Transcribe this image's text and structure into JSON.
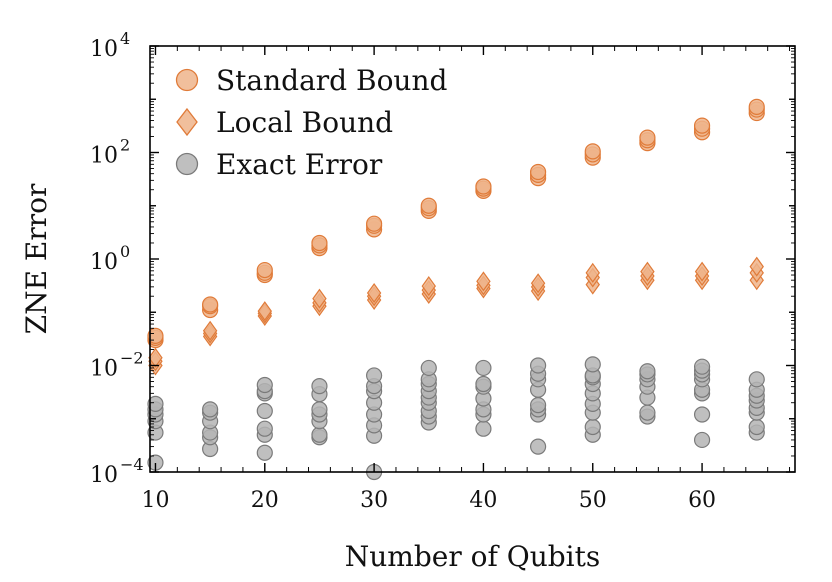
{
  "chart_data": {
    "type": "scatter",
    "xlabel": "Number of Qubits",
    "ylabel": "ZNE Error",
    "xlim": [
      9.5,
      68.5
    ],
    "ylim_log10": [
      -4,
      4
    ],
    "y_scale": "log",
    "grid": false,
    "legend_placement": "top-left",
    "x_ticks": [
      {
        "value": 10,
        "label": "10"
      },
      {
        "value": 20,
        "label": "20"
      },
      {
        "value": 30,
        "label": "30"
      },
      {
        "value": 40,
        "label": "40"
      },
      {
        "value": 50,
        "label": "50"
      },
      {
        "value": 60,
        "label": "60"
      }
    ],
    "y_ticks": [
      {
        "exp": -4,
        "base": "10",
        "sup": "−4"
      },
      {
        "exp": -2,
        "base": "10",
        "sup": "−2"
      },
      {
        "exp": 0,
        "base": "10",
        "sup": "0"
      },
      {
        "exp": 2,
        "base": "10",
        "sup": "2"
      },
      {
        "exp": 4,
        "base": "10",
        "sup": "4"
      }
    ],
    "series": [
      {
        "name": "Standard Bound",
        "marker": "circle",
        "color": "#e07b39",
        "fill": "#efb48b",
        "points": [
          [
            10,
            0.03
          ],
          [
            10,
            0.033
          ],
          [
            10,
            0.036
          ],
          [
            15,
            0.11
          ],
          [
            15,
            0.13
          ],
          [
            15,
            0.14
          ],
          [
            20,
            0.5
          ],
          [
            20,
            0.55
          ],
          [
            20,
            0.62
          ],
          [
            25,
            1.6
          ],
          [
            25,
            1.8
          ],
          [
            25,
            2.0
          ],
          [
            30,
            3.6
          ],
          [
            30,
            4.2
          ],
          [
            30,
            4.6
          ],
          [
            35,
            8.0
          ],
          [
            35,
            9.0
          ],
          [
            35,
            10.0
          ],
          [
            40,
            19.0
          ],
          [
            40,
            21.0
          ],
          [
            40,
            23.0
          ],
          [
            45,
            33.0
          ],
          [
            45,
            38.0
          ],
          [
            45,
            43.0
          ],
          [
            50,
            80.0
          ],
          [
            50,
            92.0
          ],
          [
            50,
            105.0
          ],
          [
            55,
            150.0
          ],
          [
            55,
            170.0
          ],
          [
            55,
            190.0
          ],
          [
            60,
            240.0
          ],
          [
            60,
            280.0
          ],
          [
            60,
            320.0
          ],
          [
            65,
            550.0
          ],
          [
            65,
            640.0
          ],
          [
            65,
            720.0
          ]
        ]
      },
      {
        "name": "Local Bound",
        "marker": "diamond",
        "color": "#e07b39",
        "fill": "#efb48b",
        "points": [
          [
            10,
            0.01
          ],
          [
            10,
            0.012
          ],
          [
            10,
            0.014
          ],
          [
            15,
            0.035
          ],
          [
            15,
            0.04
          ],
          [
            15,
            0.045
          ],
          [
            20,
            0.085
          ],
          [
            20,
            0.095
          ],
          [
            20,
            0.105
          ],
          [
            25,
            0.13
          ],
          [
            25,
            0.15
          ],
          [
            25,
            0.18
          ],
          [
            30,
            0.17
          ],
          [
            30,
            0.2
          ],
          [
            30,
            0.23
          ],
          [
            35,
            0.22
          ],
          [
            35,
            0.26
          ],
          [
            35,
            0.31
          ],
          [
            40,
            0.28
          ],
          [
            40,
            0.32
          ],
          [
            40,
            0.38
          ],
          [
            45,
            0.25
          ],
          [
            45,
            0.3
          ],
          [
            45,
            0.35
          ],
          [
            50,
            0.33
          ],
          [
            50,
            0.45
          ],
          [
            50,
            0.55
          ],
          [
            55,
            0.4
          ],
          [
            55,
            0.48
          ],
          [
            55,
            0.58
          ],
          [
            60,
            0.4
          ],
          [
            60,
            0.48
          ],
          [
            60,
            0.58
          ],
          [
            65,
            0.4
          ],
          [
            65,
            0.55
          ],
          [
            65,
            0.72
          ]
        ]
      },
      {
        "name": "Exact Error",
        "marker": "circle",
        "color": "#7a7a7a",
        "fill": "#b4b4b4",
        "points": [
          [
            10,
            0.00015
          ],
          [
            10,
            0.00055
          ],
          [
            10,
            0.0009
          ],
          [
            10,
            0.0012
          ],
          [
            10,
            0.0015
          ],
          [
            10,
            0.0019
          ],
          [
            15,
            0.00027
          ],
          [
            15,
            0.00045
          ],
          [
            15,
            0.00055
          ],
          [
            15,
            0.0009
          ],
          [
            15,
            0.0013
          ],
          [
            15,
            0.0015
          ],
          [
            20,
            0.00023
          ],
          [
            20,
            0.0005
          ],
          [
            20,
            0.00065
          ],
          [
            20,
            0.0014
          ],
          [
            20,
            0.003
          ],
          [
            20,
            0.0033
          ],
          [
            20,
            0.0043
          ],
          [
            25,
            0.00045
          ],
          [
            25,
            0.0005
          ],
          [
            25,
            0.0009
          ],
          [
            25,
            0.0012
          ],
          [
            25,
            0.0015
          ],
          [
            25,
            0.0029
          ],
          [
            25,
            0.0041
          ],
          [
            30,
            0.0001
          ],
          [
            30,
            0.00048
          ],
          [
            30,
            0.00075
          ],
          [
            30,
            0.0012
          ],
          [
            30,
            0.002
          ],
          [
            30,
            0.0033
          ],
          [
            30,
            0.0041
          ],
          [
            30,
            0.0065
          ],
          [
            35,
            0.00085
          ],
          [
            35,
            0.0011
          ],
          [
            35,
            0.0014
          ],
          [
            35,
            0.002
          ],
          [
            35,
            0.0025
          ],
          [
            35,
            0.0033
          ],
          [
            35,
            0.0045
          ],
          [
            35,
            0.0055
          ],
          [
            35,
            0.009
          ],
          [
            40,
            0.00065
          ],
          [
            40,
            0.0012
          ],
          [
            40,
            0.0015
          ],
          [
            40,
            0.0024
          ],
          [
            40,
            0.004
          ],
          [
            40,
            0.0045
          ],
          [
            40,
            0.009
          ],
          [
            45,
            0.0003
          ],
          [
            45,
            0.0012
          ],
          [
            45,
            0.0015
          ],
          [
            45,
            0.0018
          ],
          [
            45,
            0.0035
          ],
          [
            45,
            0.0055
          ],
          [
            45,
            0.007
          ],
          [
            45,
            0.01
          ],
          [
            50,
            0.0005
          ],
          [
            50,
            0.0007
          ],
          [
            50,
            0.0013
          ],
          [
            50,
            0.0019
          ],
          [
            50,
            0.003
          ],
          [
            50,
            0.0045
          ],
          [
            50,
            0.006
          ],
          [
            50,
            0.0065
          ],
          [
            50,
            0.0105
          ],
          [
            55,
            0.0011
          ],
          [
            55,
            0.0013
          ],
          [
            55,
            0.0025
          ],
          [
            55,
            0.004
          ],
          [
            55,
            0.0055
          ],
          [
            55,
            0.0068
          ],
          [
            55,
            0.0078
          ],
          [
            60,
            0.0004
          ],
          [
            60,
            0.0012
          ],
          [
            60,
            0.003
          ],
          [
            60,
            0.0035
          ],
          [
            60,
            0.0055
          ],
          [
            60,
            0.0068
          ],
          [
            60,
            0.008
          ],
          [
            60,
            0.0095
          ],
          [
            65,
            0.00055
          ],
          [
            65,
            0.0007
          ],
          [
            65,
            0.0013
          ],
          [
            65,
            0.0016
          ],
          [
            65,
            0.0022
          ],
          [
            65,
            0.0027
          ],
          [
            65,
            0.0035
          ],
          [
            65,
            0.0055
          ]
        ]
      }
    ]
  }
}
